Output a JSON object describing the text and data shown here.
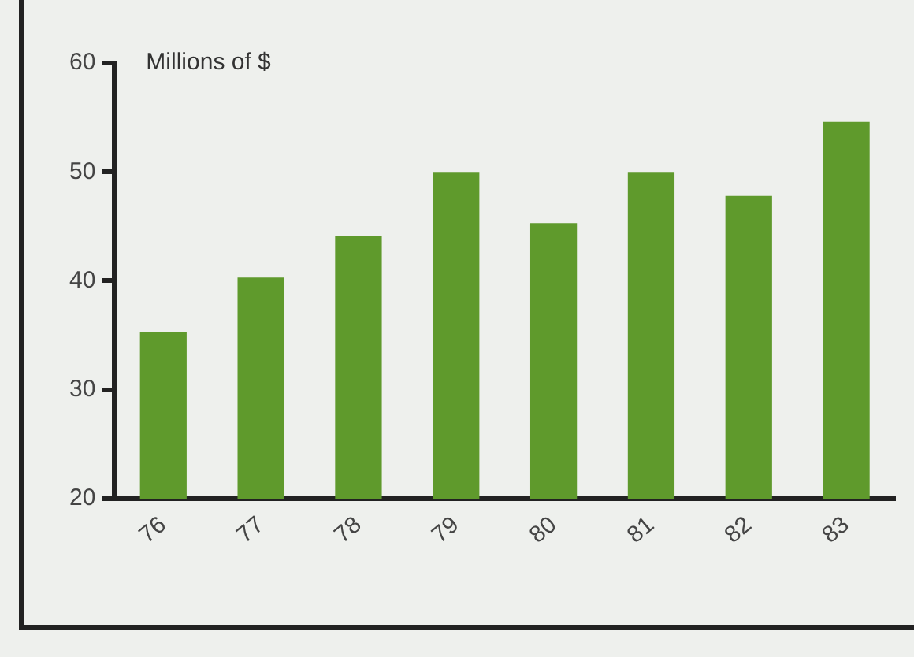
{
  "chart_data": {
    "type": "bar",
    "ylabel": "Millions of $",
    "categories": [
      "76",
      "77",
      "78",
      "79",
      "80",
      "81",
      "82",
      "83"
    ],
    "values": [
      35.3,
      40.3,
      44.1,
      50,
      45.3,
      50,
      47.8,
      54.6
    ],
    "color": "#5f9a2c",
    "ylim": [
      20,
      60
    ],
    "yticks": [
      20,
      30,
      40,
      50,
      60
    ],
    "grid": false
  }
}
